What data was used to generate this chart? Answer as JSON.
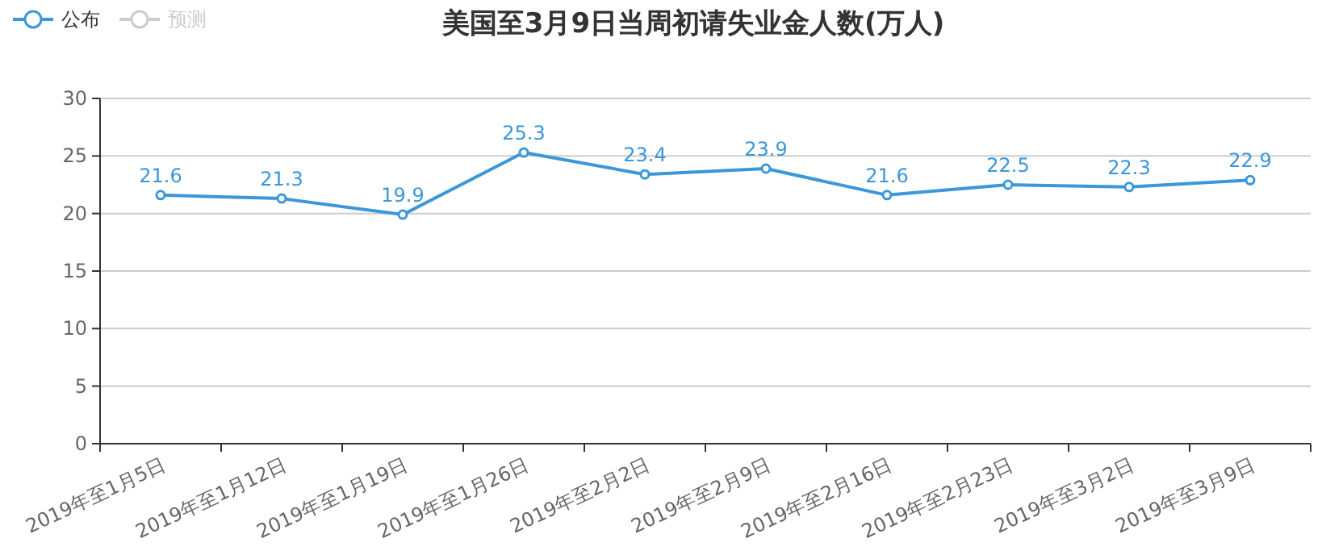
{
  "chart_data": {
    "type": "line",
    "title": "美国至3月9日当周初请失业金人数(万人)",
    "categories": [
      "2019年至1月5日",
      "2019年至1月12日",
      "2019年至1月19日",
      "2019年至1月26日",
      "2019年至2月2日",
      "2019年至2月9日",
      "2019年至2月16日",
      "2019年至2月23日",
      "2019年至3月2日",
      "2019年至3月9日"
    ],
    "series": [
      {
        "name": "公布",
        "color": "#3a97d9",
        "values": [
          21.6,
          21.3,
          19.9,
          25.3,
          23.4,
          23.9,
          21.6,
          22.5,
          22.3,
          22.9
        ]
      },
      {
        "name": "预测",
        "color": "#cccccc",
        "values": [
          null,
          null,
          null,
          null,
          null,
          null,
          null,
          null,
          null,
          null
        ]
      }
    ],
    "ylim": [
      0,
      30
    ],
    "yticks": [
      0,
      5,
      10,
      15,
      20,
      25,
      30
    ],
    "grid": "y",
    "legend": "top left",
    "marker": "circle",
    "data_labels": true
  }
}
